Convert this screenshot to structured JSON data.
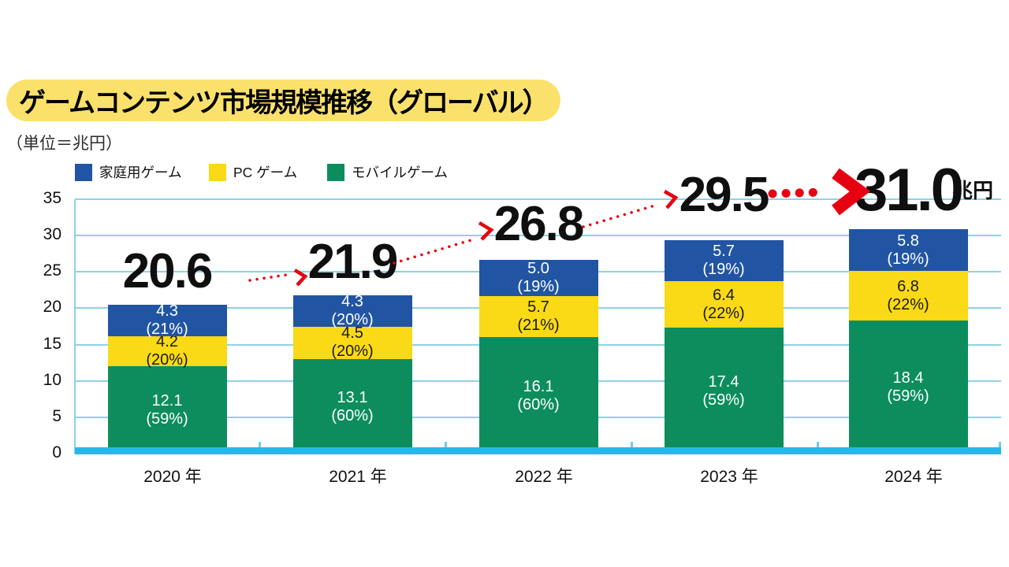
{
  "title": "ゲームコンテンツ市場規模推移（グローバル）",
  "unit_note": "（単位＝兆円）",
  "unit_suffix": "兆円",
  "colors": {
    "console_blue": "#2155A4",
    "pc_yellow": "#FAD916",
    "mobile_green": "#0D8D5D",
    "axis_cyan": "#29B7E8",
    "grid_cyan": "#8FD2E4",
    "trend_red": "#E60012",
    "title_highlight": "#FAE16B"
  },
  "legend": [
    {
      "label": "家庭用ゲーム",
      "color": "#2155A4"
    },
    {
      "label": "PC ゲーム",
      "color": "#FAD916"
    },
    {
      "label": "モバイルゲーム",
      "color": "#0D8D5D"
    }
  ],
  "chart_data": {
    "type": "bar",
    "stacked": true,
    "title": "ゲームコンテンツ市場規模推移（グローバル）",
    "unit": "兆円",
    "categories": [
      "2020 年",
      "2021 年",
      "2022 年",
      "2023 年",
      "2024 年"
    ],
    "series": [
      {
        "name": "モバイルゲーム",
        "color": "#0D8D5D",
        "text_color": "#FFFFFF",
        "values": [
          12.1,
          13.1,
          16.1,
          17.4,
          18.4
        ],
        "pcts": [
          "59%",
          "60%",
          "60%",
          "59%",
          "59%"
        ]
      },
      {
        "name": "PC ゲーム",
        "color": "#FAD916",
        "text_color": "#1A1A1A",
        "values": [
          4.2,
          4.5,
          5.7,
          6.4,
          6.8
        ],
        "pcts": [
          "20%",
          "20%",
          "21%",
          "22%",
          "22%"
        ]
      },
      {
        "name": "家庭用ゲーム",
        "color": "#2155A4",
        "text_color": "#FFFFFF",
        "values": [
          4.3,
          4.3,
          5.0,
          5.7,
          5.8
        ],
        "pcts": [
          "21%",
          "20%",
          "19%",
          "19%",
          "19%"
        ]
      }
    ],
    "totals": [
      20.6,
      21.9,
      26.8,
      29.5,
      31.0
    ],
    "yticks": [
      0,
      5,
      10,
      15,
      20,
      25,
      30,
      35
    ],
    "ylim": [
      0,
      35
    ],
    "grid": true,
    "legend_position": "top",
    "stack_note": "series listed bottom-to-top"
  }
}
